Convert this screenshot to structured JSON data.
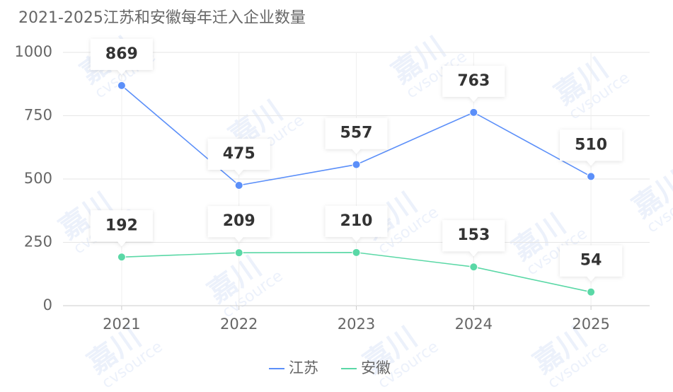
{
  "chart_data": {
    "type": "line",
    "title": "2021-2025江苏和安徽每年迁入企业数量",
    "categories": [
      "2021",
      "2022",
      "2023",
      "2024",
      "2025"
    ],
    "series": [
      {
        "name": "江苏",
        "color": "#5b8ff9",
        "values": [
          869,
          475,
          557,
          763,
          510
        ]
      },
      {
        "name": "安徽",
        "color": "#5ad8a6",
        "values": [
          192,
          209,
          210,
          153,
          54
        ]
      }
    ],
    "ylim": [
      0,
      1000
    ],
    "yticks": [
      0,
      250,
      500,
      750,
      1000
    ],
    "grid": true,
    "legend": "bottom",
    "watermark": [
      "嘉川",
      "cvsource"
    ]
  }
}
